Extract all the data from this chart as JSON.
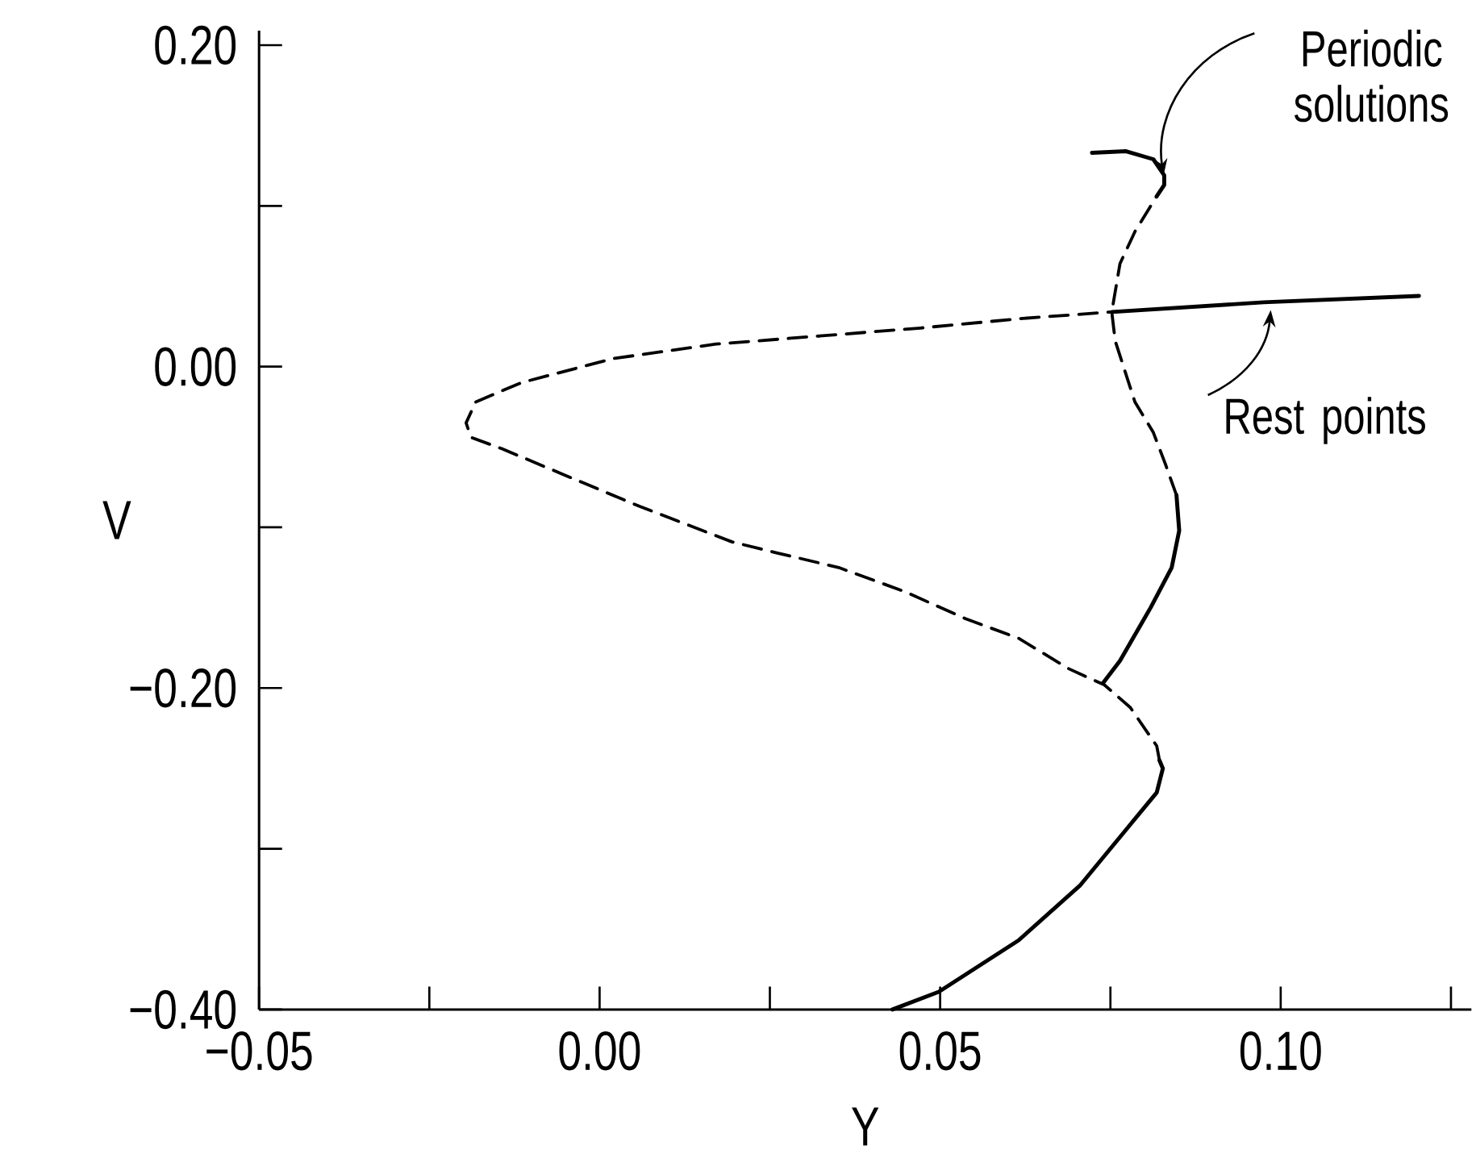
{
  "chart_data": {
    "type": "line",
    "xlabel": "Y",
    "ylabel": "V",
    "xlim": [
      -0.05,
      0.128
    ],
    "ylim": [
      -0.4,
      0.209
    ],
    "xticks": [
      {
        "value": -0.05,
        "label": "−0.05"
      },
      {
        "value": -0.025,
        "label": null
      },
      {
        "value": 0,
        "label": "0.00"
      },
      {
        "value": 0.025,
        "label": null
      },
      {
        "value": 0.05,
        "label": "0.05"
      },
      {
        "value": 0.075,
        "label": null
      },
      {
        "value": 0.1,
        "label": "0.10"
      },
      {
        "value": 0.125,
        "label": null
      }
    ],
    "yticks": [
      {
        "value": -0.4,
        "label": "−0.40"
      },
      {
        "value": -0.3,
        "label": null
      },
      {
        "value": -0.2,
        "label": "−0.20"
      },
      {
        "value": -0.1,
        "label": null
      },
      {
        "value": 0,
        "label": "0.00"
      },
      {
        "value": 0.1,
        "label": null
      },
      {
        "value": 0.2,
        "label": "0.20"
      }
    ],
    "marker": "none",
    "series": [
      {
        "color": "#000000",
        "line_style": "solid",
        "x": [
          0.043,
          0.0498,
          0.0615,
          0.0705,
          0.0779,
          0.0818,
          0.0827,
          0.0822
        ],
        "values": [
          -0.4,
          -0.389,
          -0.357,
          -0.323,
          -0.285,
          -0.265,
          -0.25,
          -0.245
        ]
      },
      {
        "color": "#000000",
        "line_style": "dashed",
        "x": [
          0.0822,
          0.0818,
          0.0779,
          0.0741,
          0.0689,
          0.0615,
          0.0538,
          0.0448,
          0.0351,
          0.0261,
          0.0194,
          0.0059,
          -0.0054,
          -0.0144,
          -0.0189,
          -0.0196,
          -0.0182,
          -0.0115,
          0.002,
          0.0171,
          0.0322,
          0.0471,
          0.0622,
          0.0752
        ],
        "values": [
          -0.245,
          -0.236,
          -0.212,
          -0.198,
          -0.188,
          -0.169,
          -0.157,
          -0.14,
          -0.125,
          -0.116,
          -0.109,
          -0.087,
          -0.067,
          -0.051,
          -0.044,
          -0.035,
          -0.022,
          -0.01,
          0.005,
          0.014,
          0.019,
          0.024,
          0.03,
          0.034
        ]
      },
      {
        "color": "#000000",
        "line_style": "solid",
        "x": [
          0.0752,
          0.0975,
          0.1203
        ],
        "values": [
          0.034,
          0.04,
          0.044
        ]
      },
      {
        "color": "#000000",
        "line_style": "solid",
        "x": [
          0.0739,
          0.0764,
          0.0809,
          0.084,
          0.0851,
          0.0847
        ],
        "values": [
          -0.197,
          -0.183,
          -0.15,
          -0.125,
          -0.102,
          -0.08
        ]
      },
      {
        "color": "#000000",
        "line_style": "dashed",
        "x": [
          0.0847,
          0.0831,
          0.0813,
          0.0786,
          0.0757,
          0.0752,
          0.0764,
          0.0786,
          0.0818
        ],
        "values": [
          -0.08,
          -0.061,
          -0.041,
          -0.022,
          0.016,
          0.034,
          0.064,
          0.084,
          0.106
        ]
      },
      {
        "color": "#000000",
        "line_style": "solid",
        "x": [
          0.0818,
          0.0829,
          0.0829,
          0.0813,
          0.0773,
          0.0723
        ],
        "values": [
          0.106,
          0.113,
          0.119,
          0.129,
          0.134,
          0.133
        ]
      }
    ],
    "annotations": [
      {
        "text": "Periodic solutions",
        "x": 0.0829,
        "y": 0.116
      },
      {
        "text": "Rest points",
        "x": 0.0986,
        "y": 0.038
      }
    ]
  }
}
